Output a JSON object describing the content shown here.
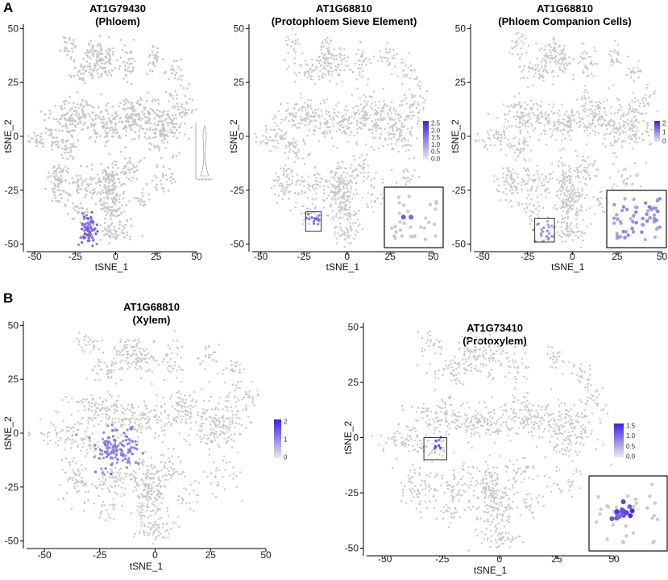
{
  "panel_letters": [
    "A",
    "B"
  ],
  "colors": {
    "cell": "#c7c7c7",
    "low": "#d6d3ea",
    "high": "#3f1fe0",
    "axis": "#000000",
    "box": "#333333"
  },
  "chart_data": [
    {
      "type": "scatter",
      "panel": "A",
      "title": [
        "AT1G79430",
        "(Phloem)"
      ],
      "xlabel": "tSNE_1",
      "ylabel": "tSNE_2",
      "xlim": [
        -55,
        52
      ],
      "ylim": [
        -52,
        52
      ],
      "xticks": [
        -50,
        -25,
        0,
        25,
        50
      ],
      "yticks": [
        -50,
        -25,
        0,
        25,
        50
      ],
      "highlight": {
        "x": -17,
        "y": -43,
        "sx": 2.5,
        "sy": 3.5,
        "n": 75,
        "level": 0.7
      },
      "legend": {
        "kind": "violin",
        "labels": []
      },
      "inset": null
    },
    {
      "type": "scatter",
      "panel": "A",
      "title": [
        "AT1G68810",
        "(Protophloem Sieve Element)"
      ],
      "xlabel": "tSNE_1",
      "ylabel": "tSNE_2",
      "xlim": [
        -55,
        52
      ],
      "ylim": [
        -52,
        52
      ],
      "xticks": [
        -50,
        -25,
        0,
        25,
        50
      ],
      "yticks": [
        -50,
        -25,
        0,
        25,
        50
      ],
      "highlight": {
        "x": -19,
        "y": -39,
        "sx": 1.8,
        "sy": 1.8,
        "n": 14,
        "level": 0.8
      },
      "legend": {
        "kind": "colorbar",
        "labels": [
          "2.5",
          "2.0",
          "1.5",
          "1.0",
          "0.5",
          "0.0"
        ]
      },
      "box": {
        "xmin": -24,
        "xmax": -15,
        "ymin": -44,
        "ymax": -35
      },
      "inset": {
        "points": 30,
        "high": 2
      }
    },
    {
      "type": "scatter",
      "panel": "A",
      "title": [
        "AT1G68810",
        "(Phloem Companion Cells)"
      ],
      "xlabel": "tSNE_1",
      "ylabel": "tSNE_2",
      "xlim": [
        -55,
        52
      ],
      "ylim": [
        -52,
        52
      ],
      "xticks": [
        -50,
        -25,
        0,
        25,
        50
      ],
      "yticks": [
        -50,
        -25,
        0,
        25,
        50
      ],
      "highlight": {
        "x": -15,
        "y": -44,
        "sx": 2.5,
        "sy": 2.5,
        "n": 25,
        "level": 0.45
      },
      "legend": {
        "kind": "colorbar",
        "labels": [
          "2",
          "1",
          "0"
        ]
      },
      "box": {
        "xmin": -21,
        "xmax": -10,
        "ymin": -49,
        "ymax": -38
      },
      "inset": {
        "points": 60,
        "high": 0
      }
    },
    {
      "type": "scatter",
      "panel": "B",
      "title": [
        "AT1G68810",
        "(Xylem)"
      ],
      "xlabel": "tSNE_1",
      "ylabel": "tSNE_2",
      "xlim": [
        -58,
        50
      ],
      "ylim": [
        -52,
        52
      ],
      "xticks": [
        -50,
        -25,
        0,
        25,
        50
      ],
      "yticks": [
        -50,
        -25,
        0,
        25,
        50
      ],
      "highlight": {
        "x": -18,
        "y": -8,
        "sx": 5,
        "sy": 5,
        "n": 130,
        "level": 0.6
      },
      "legend": {
        "kind": "colorbar",
        "labels": [
          "2",
          "1",
          "0"
        ]
      },
      "inset": null
    },
    {
      "type": "scatter",
      "panel": "B",
      "title": [
        "AT1G73410",
        "(Protoxylem)"
      ],
      "xlabel": "tSNE_1",
      "ylabel": "tSNE_2",
      "xlim": [
        -58,
        50
      ],
      "ylim": [
        -52,
        52
      ],
      "xticks": [
        -50,
        -25,
        0,
        25,
        50
      ],
      "yticks": [
        -50,
        -25,
        0,
        25,
        50
      ],
      "highlight": {
        "x": -27,
        "y": -3,
        "sx": 1.2,
        "sy": 1.2,
        "n": 8,
        "level": 0.85
      },
      "legend": {
        "kind": "colorbar",
        "labels": [
          "1.5",
          "1.0",
          "0.5",
          "0.0"
        ]
      },
      "box": {
        "xmin": -33,
        "xmax": -23,
        "ymin": -10,
        "ymax": 0
      },
      "inset": {
        "points": 30,
        "high": 14
      }
    }
  ]
}
